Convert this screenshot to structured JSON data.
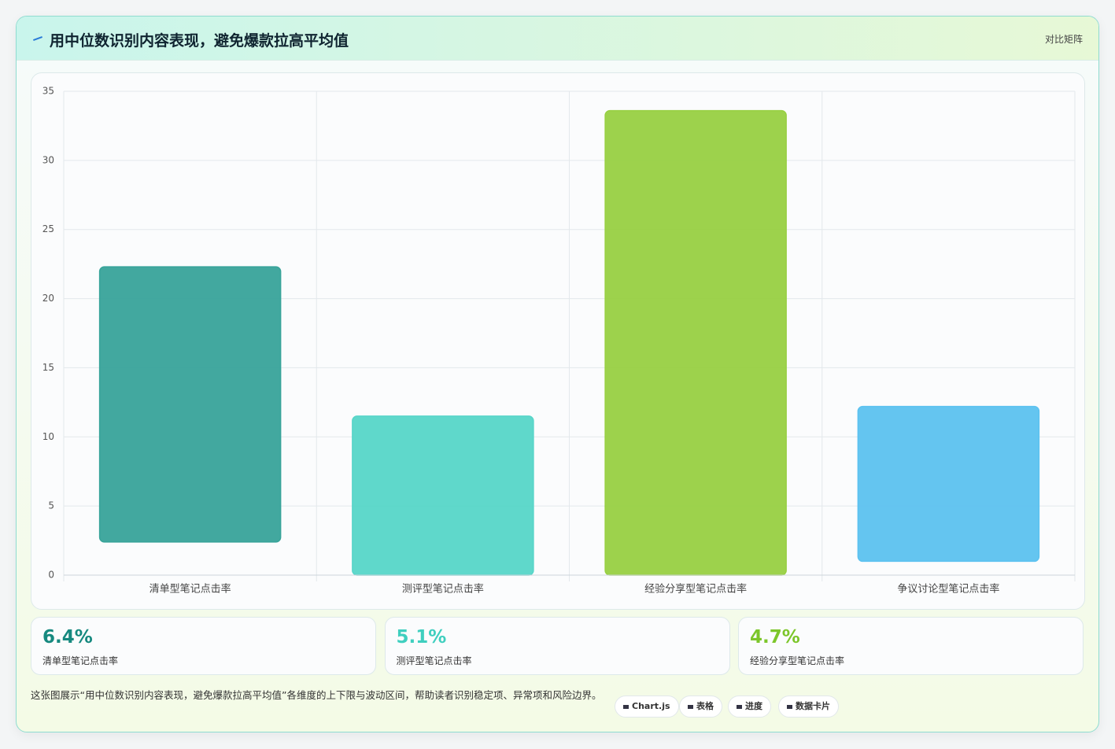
{
  "header": {
    "title": "用中位数识别内容表现，避免爆款拉高平均值",
    "action": "对比矩阵"
  },
  "chart_data": {
    "type": "floating-bar",
    "categories": [
      "清单型笔记点击率",
      "测评型笔记点击率",
      "经验分享型笔记点击率",
      "争议讨论型笔记点击率"
    ],
    "ranges": [
      [
        2.4,
        22.3
      ],
      [
        0,
        11.5
      ],
      [
        0,
        33.6
      ],
      [
        1,
        12.2
      ]
    ],
    "colors": [
      "#3aa99f",
      "#5adccf",
      "#9dd644",
      "#5fc8f7"
    ],
    "ylim": [
      0,
      35
    ],
    "yticks": [
      0,
      5,
      10,
      15,
      20,
      25,
      30,
      35
    ],
    "grid": true
  },
  "kpis": [
    {
      "value": "6.4%",
      "label": "清单型笔记点击率",
      "color": "#16897f"
    },
    {
      "value": "5.1%",
      "label": "测评型笔记点击率",
      "color": "#3fcfbf"
    },
    {
      "value": "4.7%",
      "label": "经验分享型笔记点击率",
      "color": "#7cc62a"
    }
  ],
  "footer": {
    "description": "这张图展示“用中位数识别内容表现，避免爆款拉高平均值”各维度的上下限与波动区间，帮助读者识别稳定项、异常项和风险边界。",
    "tags": [
      "Chart.js",
      "表格",
      "进度",
      "数据卡片"
    ]
  }
}
